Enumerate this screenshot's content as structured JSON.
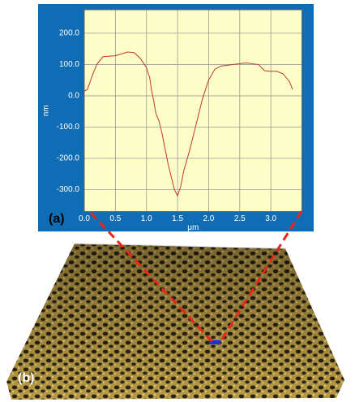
{
  "chart_data": {
    "type": "line",
    "x_label": "μm",
    "y_label": "nm",
    "panel_a": "(a)",
    "panel_b": "(b)",
    "x": [
      0.0,
      0.05,
      0.12,
      0.2,
      0.3,
      0.5,
      0.7,
      0.8,
      0.9,
      1.0,
      1.03,
      1.05,
      1.08,
      1.1,
      1.12,
      1.15,
      1.18,
      1.2,
      1.25,
      1.3,
      1.35,
      1.4,
      1.45,
      1.5,
      1.55,
      1.6,
      1.7,
      1.8,
      1.9,
      2.0,
      2.1,
      2.2,
      2.4,
      2.6,
      2.8,
      2.9,
      3.0,
      3.1,
      3.2,
      3.3,
      3.35
    ],
    "series": [
      {
        "color": "#c0392b",
        "values": [
          15,
          20,
          60,
          100,
          125,
          128,
          140,
          138,
          120,
          90,
          70,
          60,
          20,
          0,
          -20,
          -55,
          -70,
          -80,
          -120,
          -170,
          -220,
          -260,
          -300,
          -320,
          -290,
          -240,
          -170,
          -90,
          -10,
          50,
          85,
          95,
          100,
          105,
          100,
          80,
          78,
          78,
          70,
          45,
          20
        ]
      }
    ],
    "xlim": [
      0,
      3.5
    ],
    "xticks": [
      {
        "value": 0,
        "label": "0.0"
      },
      0.5,
      {
        "value": 1,
        "label": "1.0"
      },
      1.5,
      {
        "value": 2,
        "label": "2.0"
      },
      2.5,
      {
        "value": 3,
        "label": "3.0"
      }
    ],
    "ylim": [
      -370,
      275
    ],
    "yticks": [
      {
        "value": -300,
        "label": "-300.0"
      },
      {
        "value": -200,
        "label": "-200.0"
      },
      {
        "value": -100,
        "label": "-100.0"
      },
      {
        "value": 0,
        "label": "0.0"
      },
      {
        "value": 100,
        "label": "100.0"
      },
      {
        "value": 200,
        "label": "200.0"
      }
    ],
    "grid": true
  }
}
